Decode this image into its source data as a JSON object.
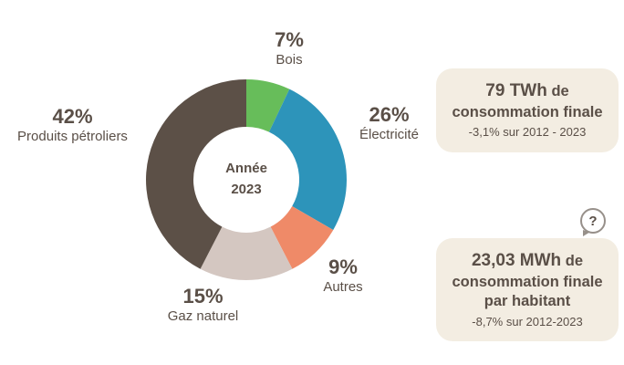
{
  "chart_data": {
    "type": "pie",
    "donut": true,
    "direction": "clockwise",
    "start_angle_deg": 0,
    "center_label": {
      "line1": "Année",
      "line2": "2023"
    },
    "slices": [
      {
        "key": "bois",
        "label": "Bois",
        "value": 7,
        "pct_label": "7%",
        "color": "#67bd5a"
      },
      {
        "key": "electricite",
        "label": "Électricité",
        "value": 26,
        "pct_label": "26%",
        "color": "#2d94ba"
      },
      {
        "key": "autres",
        "label": "Autres",
        "value": 9,
        "pct_label": "9%",
        "color": "#ef8a68"
      },
      {
        "key": "gaz-naturel",
        "label": "Gaz naturel",
        "value": 15,
        "pct_label": "15%",
        "color": "#d4c7c1"
      },
      {
        "key": "produits-petroliers",
        "label": "Produits pétroliers",
        "value": 42,
        "pct_label": "42%",
        "color": "#5c5047"
      }
    ]
  },
  "cards": [
    {
      "value": "79 TWh",
      "text": "de consommation finale",
      "note": "-3,1% sur 2012 - 2023"
    },
    {
      "value": "23,03 MWh",
      "text": "de consommation finale par habitant",
      "note": "-8,7% sur 2012-2023"
    }
  ],
  "icons": {
    "help_glyph": "?"
  },
  "colors": {
    "text": "#5a4f47",
    "card_background": "#f3ede2",
    "icon_border": "#97908a"
  }
}
